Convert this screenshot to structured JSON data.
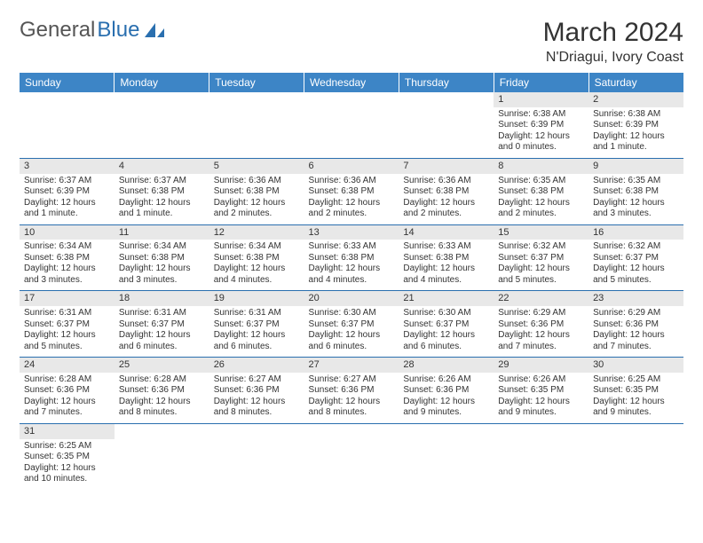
{
  "brand": {
    "general": "General",
    "blue": "Blue"
  },
  "title": "March 2024",
  "location": "N'Driagui, Ivory Coast",
  "colors": {
    "header_bg": "#3d85c6",
    "header_text": "#ffffff",
    "rule": "#2a6faf",
    "daystrip": "#e8e8e8",
    "logo_blue": "#2a6faf"
  },
  "day_headers": [
    "Sunday",
    "Monday",
    "Tuesday",
    "Wednesday",
    "Thursday",
    "Friday",
    "Saturday"
  ],
  "weeks": [
    [
      null,
      null,
      null,
      null,
      null,
      {
        "n": "1",
        "sunrise": "6:38 AM",
        "sunset": "6:39 PM",
        "daylight": "12 hours and 0 minutes."
      },
      {
        "n": "2",
        "sunrise": "6:38 AM",
        "sunset": "6:39 PM",
        "daylight": "12 hours and 1 minute."
      }
    ],
    [
      {
        "n": "3",
        "sunrise": "6:37 AM",
        "sunset": "6:39 PM",
        "daylight": "12 hours and 1 minute."
      },
      {
        "n": "4",
        "sunrise": "6:37 AM",
        "sunset": "6:38 PM",
        "daylight": "12 hours and 1 minute."
      },
      {
        "n": "5",
        "sunrise": "6:36 AM",
        "sunset": "6:38 PM",
        "daylight": "12 hours and 2 minutes."
      },
      {
        "n": "6",
        "sunrise": "6:36 AM",
        "sunset": "6:38 PM",
        "daylight": "12 hours and 2 minutes."
      },
      {
        "n": "7",
        "sunrise": "6:36 AM",
        "sunset": "6:38 PM",
        "daylight": "12 hours and 2 minutes."
      },
      {
        "n": "8",
        "sunrise": "6:35 AM",
        "sunset": "6:38 PM",
        "daylight": "12 hours and 2 minutes."
      },
      {
        "n": "9",
        "sunrise": "6:35 AM",
        "sunset": "6:38 PM",
        "daylight": "12 hours and 3 minutes."
      }
    ],
    [
      {
        "n": "10",
        "sunrise": "6:34 AM",
        "sunset": "6:38 PM",
        "daylight": "12 hours and 3 minutes."
      },
      {
        "n": "11",
        "sunrise": "6:34 AM",
        "sunset": "6:38 PM",
        "daylight": "12 hours and 3 minutes."
      },
      {
        "n": "12",
        "sunrise": "6:34 AM",
        "sunset": "6:38 PM",
        "daylight": "12 hours and 4 minutes."
      },
      {
        "n": "13",
        "sunrise": "6:33 AM",
        "sunset": "6:38 PM",
        "daylight": "12 hours and 4 minutes."
      },
      {
        "n": "14",
        "sunrise": "6:33 AM",
        "sunset": "6:38 PM",
        "daylight": "12 hours and 4 minutes."
      },
      {
        "n": "15",
        "sunrise": "6:32 AM",
        "sunset": "6:37 PM",
        "daylight": "12 hours and 5 minutes."
      },
      {
        "n": "16",
        "sunrise": "6:32 AM",
        "sunset": "6:37 PM",
        "daylight": "12 hours and 5 minutes."
      }
    ],
    [
      {
        "n": "17",
        "sunrise": "6:31 AM",
        "sunset": "6:37 PM",
        "daylight": "12 hours and 5 minutes."
      },
      {
        "n": "18",
        "sunrise": "6:31 AM",
        "sunset": "6:37 PM",
        "daylight": "12 hours and 6 minutes."
      },
      {
        "n": "19",
        "sunrise": "6:31 AM",
        "sunset": "6:37 PM",
        "daylight": "12 hours and 6 minutes."
      },
      {
        "n": "20",
        "sunrise": "6:30 AM",
        "sunset": "6:37 PM",
        "daylight": "12 hours and 6 minutes."
      },
      {
        "n": "21",
        "sunrise": "6:30 AM",
        "sunset": "6:37 PM",
        "daylight": "12 hours and 6 minutes."
      },
      {
        "n": "22",
        "sunrise": "6:29 AM",
        "sunset": "6:36 PM",
        "daylight": "12 hours and 7 minutes."
      },
      {
        "n": "23",
        "sunrise": "6:29 AM",
        "sunset": "6:36 PM",
        "daylight": "12 hours and 7 minutes."
      }
    ],
    [
      {
        "n": "24",
        "sunrise": "6:28 AM",
        "sunset": "6:36 PM",
        "daylight": "12 hours and 7 minutes."
      },
      {
        "n": "25",
        "sunrise": "6:28 AM",
        "sunset": "6:36 PM",
        "daylight": "12 hours and 8 minutes."
      },
      {
        "n": "26",
        "sunrise": "6:27 AM",
        "sunset": "6:36 PM",
        "daylight": "12 hours and 8 minutes."
      },
      {
        "n": "27",
        "sunrise": "6:27 AM",
        "sunset": "6:36 PM",
        "daylight": "12 hours and 8 minutes."
      },
      {
        "n": "28",
        "sunrise": "6:26 AM",
        "sunset": "6:36 PM",
        "daylight": "12 hours and 9 minutes."
      },
      {
        "n": "29",
        "sunrise": "6:26 AM",
        "sunset": "6:35 PM",
        "daylight": "12 hours and 9 minutes."
      },
      {
        "n": "30",
        "sunrise": "6:25 AM",
        "sunset": "6:35 PM",
        "daylight": "12 hours and 9 minutes."
      }
    ],
    [
      {
        "n": "31",
        "sunrise": "6:25 AM",
        "sunset": "6:35 PM",
        "daylight": "12 hours and 10 minutes."
      },
      null,
      null,
      null,
      null,
      null,
      null
    ]
  ],
  "labels": {
    "sunrise": "Sunrise: ",
    "sunset": "Sunset: ",
    "daylight": "Daylight: "
  }
}
